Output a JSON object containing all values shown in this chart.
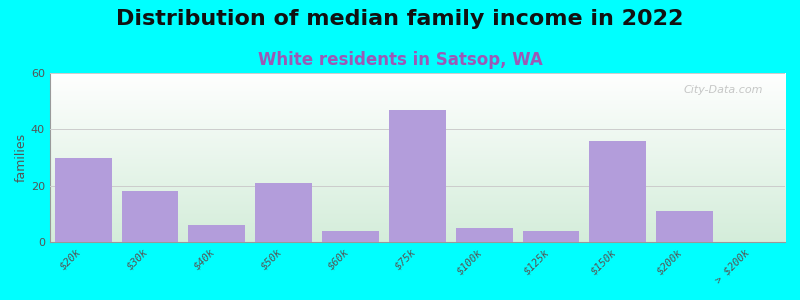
{
  "title": "Distribution of median family income in 2022",
  "subtitle": "White residents in Satsop, WA",
  "categories": [
    "$20k",
    "$30k",
    "$40k",
    "$50k",
    "$60k",
    "$75k",
    "$100k",
    "$125k",
    "$150k",
    "$200k",
    "> $200k"
  ],
  "values": [
    30,
    18,
    6,
    21,
    4,
    47,
    5,
    4,
    36,
    11,
    0
  ],
  "bar_color": "#b39ddb",
  "background_color": "#00ffff",
  "plot_bg_top": "#ffffff",
  "plot_bg_bottom": "#d4edda",
  "ylabel": "families",
  "ylim": [
    0,
    60
  ],
  "yticks": [
    0,
    20,
    40,
    60
  ],
  "title_fontsize": 16,
  "subtitle_fontsize": 12,
  "subtitle_color": "#9b59b6",
  "watermark": "City-Data.com"
}
